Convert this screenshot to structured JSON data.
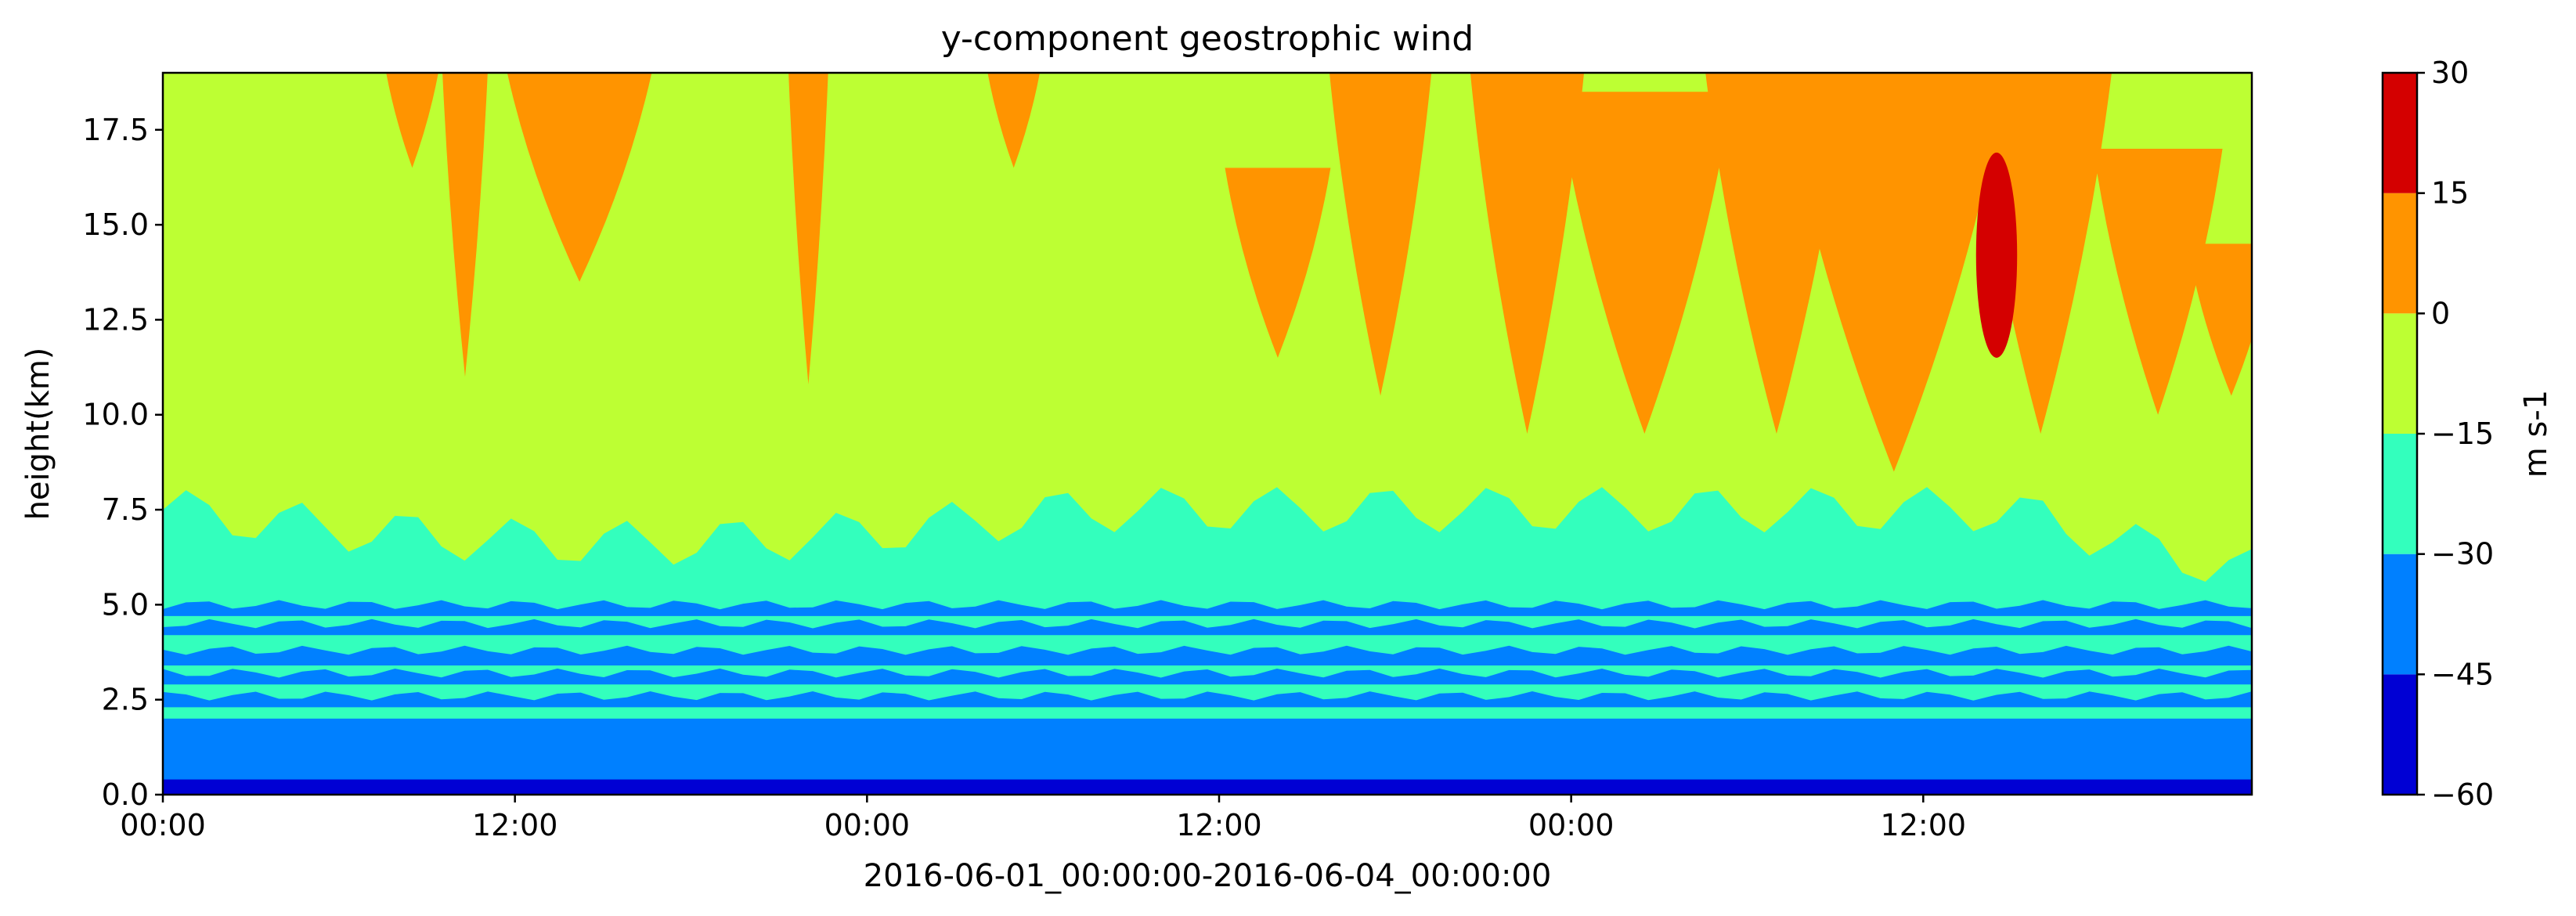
{
  "chart_data": {
    "type": "heatmap",
    "title": "y-component geostrophic wind",
    "xlabel": "2016-06-01_00:00:00-2016-06-04_00:00:00",
    "ylabel": "height(km)",
    "x_range_hours": [
      0,
      71.2
    ],
    "x_ticks": [
      {
        "hour": 0,
        "label": "00:00"
      },
      {
        "hour": 12,
        "label": "12:00"
      },
      {
        "hour": 24,
        "label": "00:00"
      },
      {
        "hour": 36,
        "label": "12:00"
      },
      {
        "hour": 48,
        "label": "00:00"
      },
      {
        "hour": 60,
        "label": "12:00"
      }
    ],
    "ylim": [
      0,
      19
    ],
    "y_ticks": [
      {
        "value": 0.0,
        "label": "0.0"
      },
      {
        "value": 2.5,
        "label": "2.5"
      },
      {
        "value": 5.0,
        "label": "5.0"
      },
      {
        "value": 7.5,
        "label": "7.5"
      },
      {
        "value": 10.0,
        "label": "10.0"
      },
      {
        "value": 12.5,
        "label": "12.5"
      },
      {
        "value": 15.0,
        "label": "15.0"
      },
      {
        "value": 17.5,
        "label": "17.5"
      }
    ],
    "colorbar": {
      "label": "m s-1",
      "levels": [
        -60,
        -45,
        -30,
        -15,
        0,
        15,
        30
      ],
      "tick_labels": [
        "−60",
        "−45",
        "−30",
        "−15",
        "0",
        "15",
        "30"
      ],
      "colors": [
        "#0000d4",
        "#0080ff",
        "#33ffbd",
        "#bdff33",
        "#ff9400",
        "#d40000"
      ]
    },
    "field_description_values": {
      "base_layer_km": [
        0,
        0.4
      ],
      "blue_layer_top_km": 2.0,
      "cyan_layer_top_km": 7.5,
      "upper_background_class": "-15 to 0",
      "orange_patches_class": "0 to 15",
      "red_core": {
        "hour": 62.5,
        "km_range": [
          11.5,
          16.9
        ],
        "class": "15 to 30"
      }
    }
  }
}
